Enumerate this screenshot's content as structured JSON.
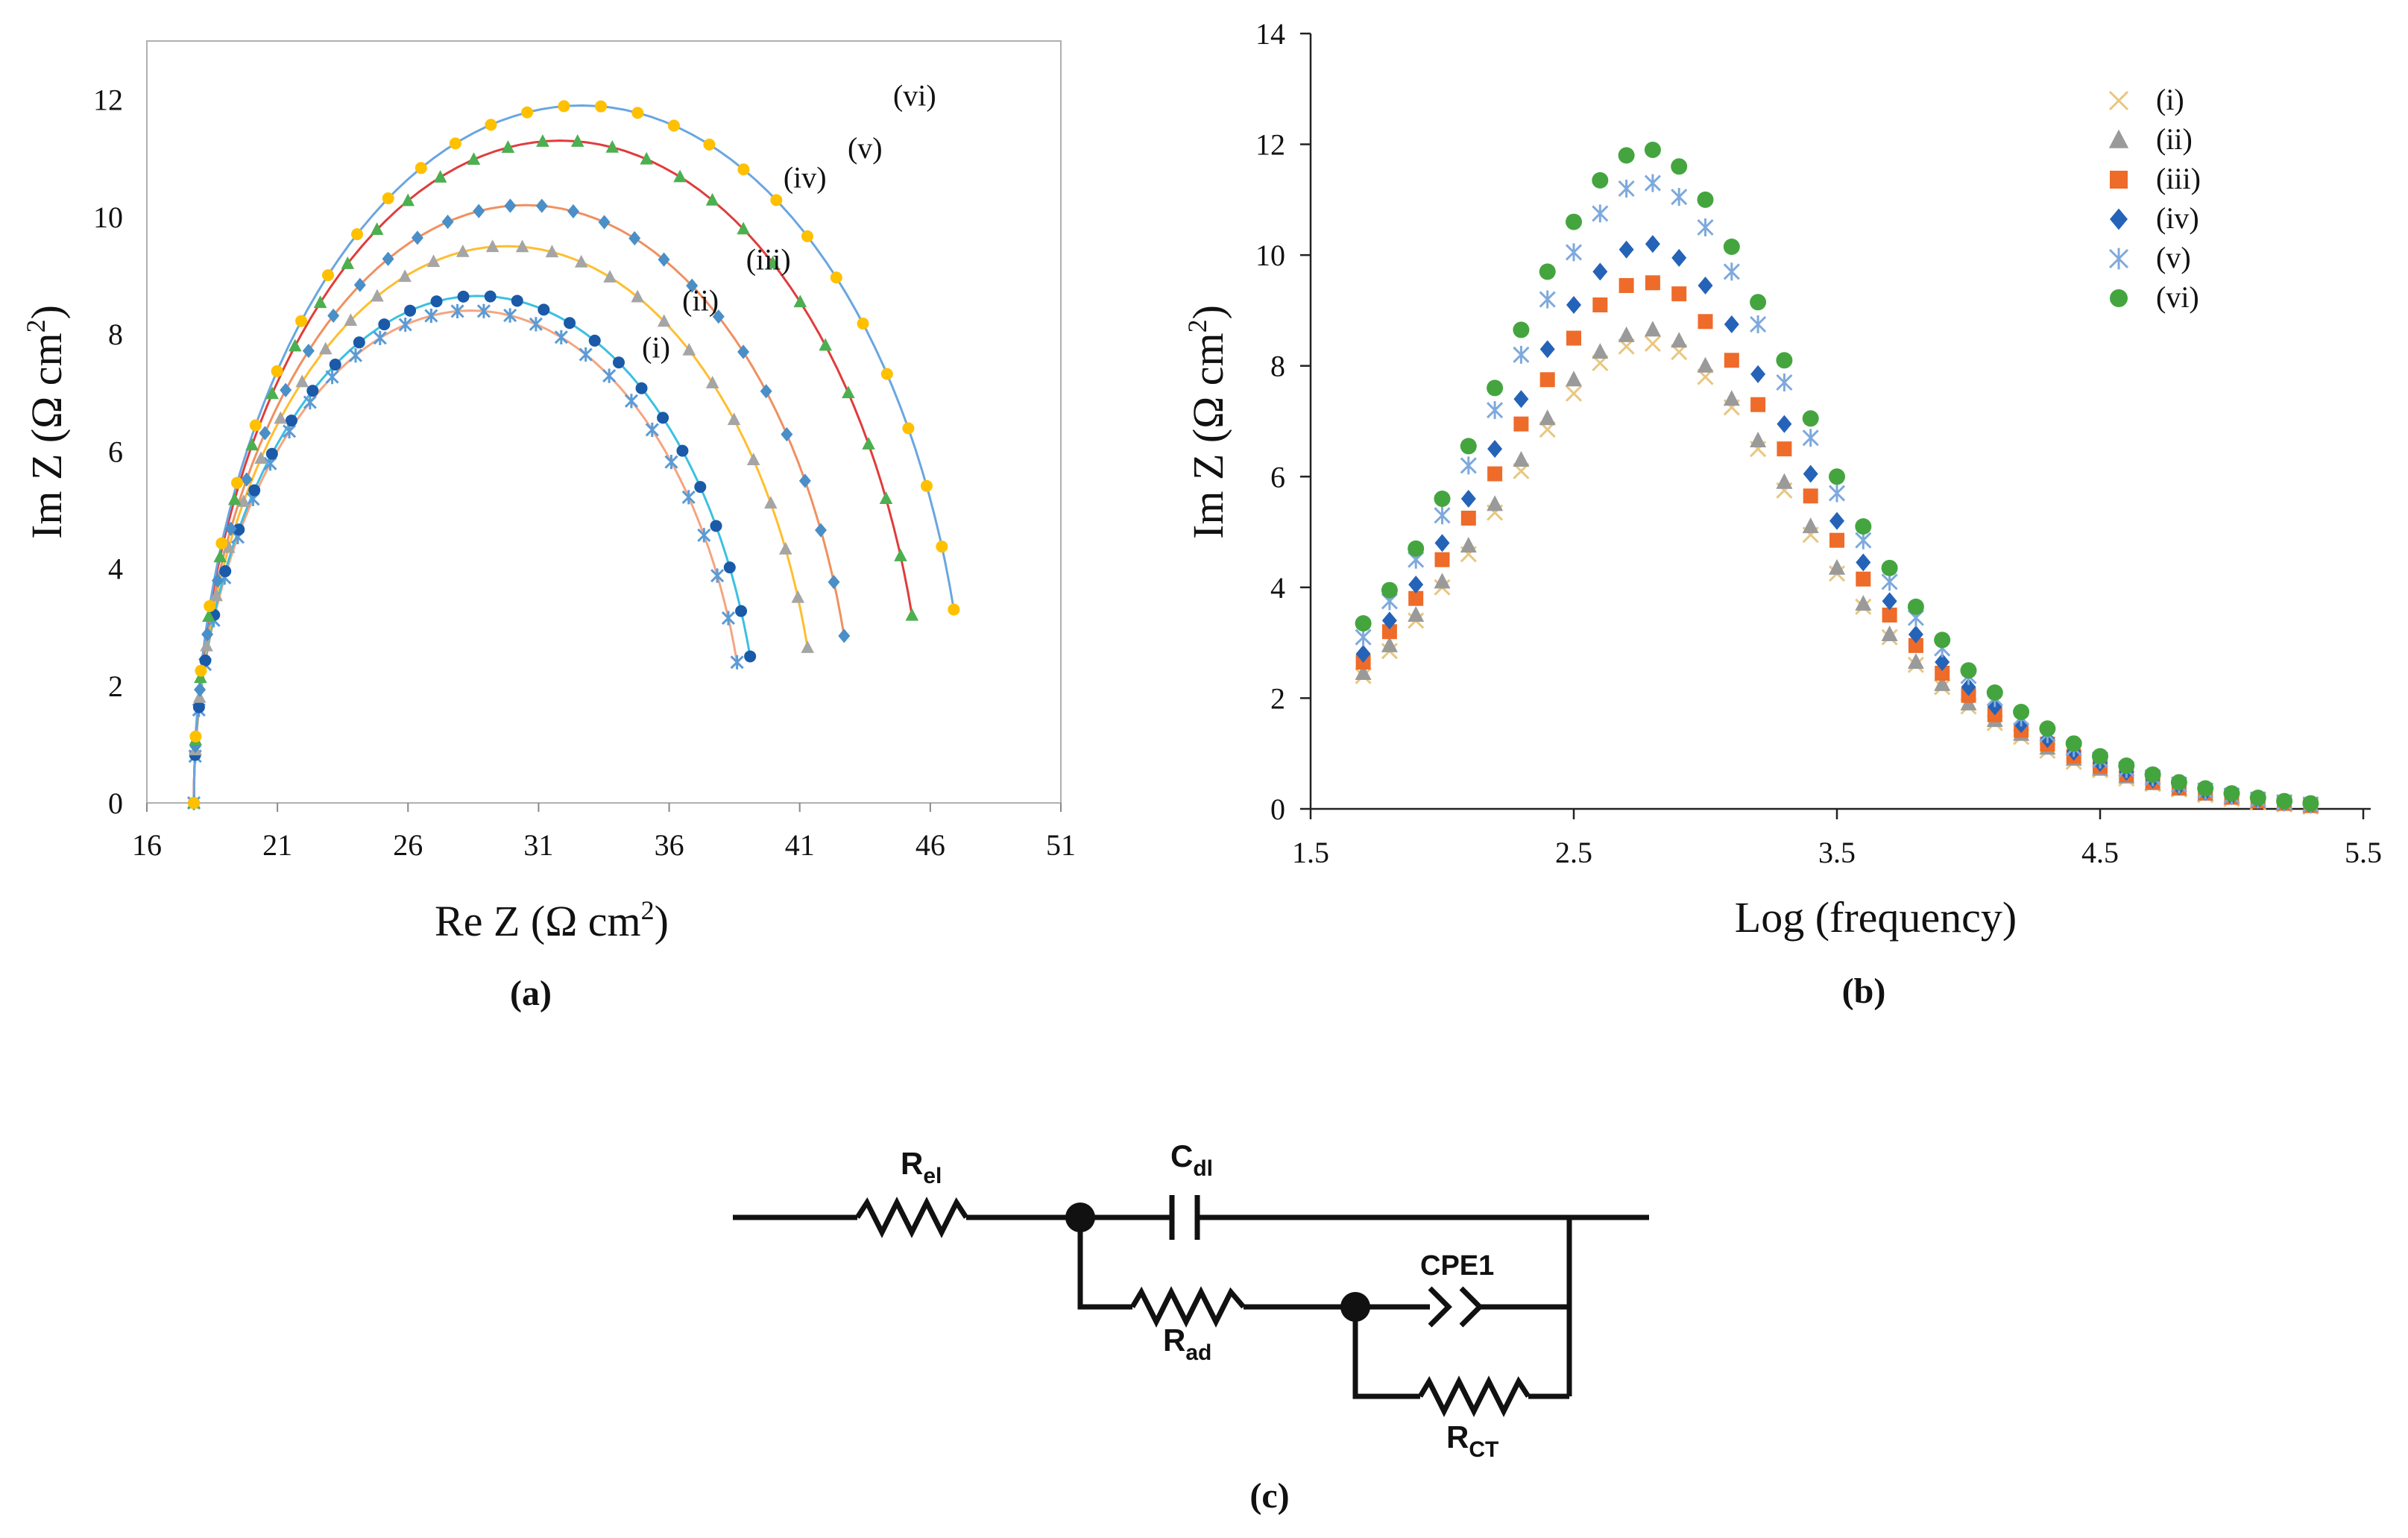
{
  "colors": {
    "i": "#e8c77e",
    "ii": "#9a9a9a",
    "iii": "#ee6b2a",
    "iv": "#2563b8",
    "v": "#7ea9dd",
    "vi": "#44a53f",
    "a_i": "#5b9bd5",
    "a_ii": "#1a5aa8",
    "a_iii": "#a5a5a5",
    "a_iv": "#4a8fc7",
    "a_v": "#4caf50",
    "a_vi": "#ffc000",
    "a_line_i": "#f4a582",
    "a_line_ii": "#3cc0e0",
    "a_line_iii": "#ffbe2e",
    "a_line_iv": "#f09060",
    "a_line_v": "#e03c3c",
    "a_line_vi": "#6aa6e0"
  },
  "chart_data": [
    {
      "panel": "(a)",
      "type": "scatter",
      "xlabel": "Re Z (Ω cm",
      "xlabel_sup": "2",
      "xlabel_close": ")",
      "ylabel": "Im Z (Ω cm",
      "ylabel_sup": "2",
      "ylabel_close": ")",
      "xlim": [
        16,
        51
      ],
      "ylim": [
        0,
        13
      ],
      "xticks": [
        16,
        21,
        26,
        31,
        36,
        41,
        46,
        51
      ],
      "yticks": [
        0,
        2,
        4,
        6,
        8,
        10,
        12
      ],
      "series": [
        {
          "name": "(i)",
          "marker": "star",
          "r0": 17.8,
          "x_end": 38.6,
          "y_end": 2.4,
          "peak": 8.4,
          "label_x": 35.5,
          "label_y": 7.6
        },
        {
          "name": "(ii)",
          "marker": "circle",
          "r0": 17.8,
          "x_end": 39.1,
          "y_end": 2.5,
          "peak": 8.65,
          "label_x": 37.2,
          "label_y": 8.4
        },
        {
          "name": "(iii)",
          "marker": "triangle",
          "r0": 17.8,
          "x_end": 41.3,
          "y_end": 2.65,
          "peak": 9.5,
          "label_x": 39.8,
          "label_y": 9.1
        },
        {
          "name": "(iv)",
          "marker": "diamond",
          "r0": 17.8,
          "x_end": 42.7,
          "y_end": 2.85,
          "peak": 10.2,
          "label_x": 41.2,
          "label_y": 10.5
        },
        {
          "name": "(v)",
          "marker": "triangle",
          "r0": 17.8,
          "x_end": 45.3,
          "y_end": 3.2,
          "peak": 11.3,
          "label_x": 43.5,
          "label_y": 11.0
        },
        {
          "name": "(vi)",
          "marker": "circle",
          "r0": 17.8,
          "x_end": 46.9,
          "y_end": 3.3,
          "peak": 11.9,
          "label_x": 45.4,
          "label_y": 11.9
        }
      ]
    },
    {
      "panel": "(b)",
      "type": "scatter",
      "xlabel": "Log (frequency)",
      "ylabel": "Im Z (Ω cm",
      "ylabel_sup": "2",
      "ylabel_close": ")",
      "xlim": [
        1.5,
        5.5
      ],
      "ylim": [
        0,
        14
      ],
      "xticks": [
        1.5,
        2.5,
        3.5,
        4.5,
        5.5
      ],
      "yticks": [
        0,
        2,
        4,
        6,
        8,
        10,
        12,
        14
      ],
      "x": [
        1.7,
        1.8,
        1.9,
        2.0,
        2.1,
        2.2,
        2.3,
        2.4,
        2.5,
        2.6,
        2.7,
        2.8,
        2.9,
        3.0,
        3.1,
        3.2,
        3.3,
        3.4,
        3.5,
        3.6,
        3.7,
        3.8,
        3.9,
        4.0,
        4.1,
        4.2,
        4.3,
        4.4,
        4.5,
        4.6,
        4.7,
        4.8,
        4.9,
        5.0,
        5.1,
        5.2,
        5.3
      ],
      "series": [
        {
          "name": "(i)",
          "marker": "x",
          "values": [
            2.4,
            2.85,
            3.4,
            4.0,
            4.6,
            5.35,
            6.1,
            6.85,
            7.5,
            8.05,
            8.35,
            8.4,
            8.25,
            7.8,
            7.25,
            6.5,
            5.75,
            4.95,
            4.25,
            3.65,
            3.1,
            2.6,
            2.2,
            1.85,
            1.55,
            1.3,
            1.05,
            0.85,
            0.7,
            0.55,
            0.45,
            0.35,
            0.25,
            0.18,
            0.12,
            0.08,
            0.04
          ]
        },
        {
          "name": "(ii)",
          "marker": "triangle",
          "values": [
            2.45,
            2.95,
            3.5,
            4.1,
            4.75,
            5.5,
            6.3,
            7.05,
            7.75,
            8.25,
            8.55,
            8.65,
            8.45,
            8.0,
            7.4,
            6.65,
            5.9,
            5.1,
            4.35,
            3.7,
            3.15,
            2.65,
            2.25,
            1.9,
            1.6,
            1.35,
            1.1,
            0.9,
            0.72,
            0.58,
            0.46,
            0.36,
            0.27,
            0.2,
            0.13,
            0.09,
            0.05
          ]
        },
        {
          "name": "(iii)",
          "marker": "square",
          "values": [
            2.65,
            3.2,
            3.8,
            4.5,
            5.25,
            6.05,
            6.95,
            7.75,
            8.5,
            9.1,
            9.45,
            9.5,
            9.3,
            8.8,
            8.1,
            7.3,
            6.5,
            5.65,
            4.85,
            4.15,
            3.5,
            2.95,
            2.45,
            2.05,
            1.7,
            1.42,
            1.17,
            0.95,
            0.77,
            0.62,
            0.49,
            0.38,
            0.29,
            0.21,
            0.14,
            0.1,
            0.06
          ]
        },
        {
          "name": "(iv)",
          "marker": "diamond",
          "values": [
            2.8,
            3.4,
            4.05,
            4.8,
            5.6,
            6.5,
            7.4,
            8.3,
            9.1,
            9.7,
            10.1,
            10.2,
            9.95,
            9.45,
            8.75,
            7.85,
            6.95,
            6.05,
            5.2,
            4.45,
            3.75,
            3.15,
            2.65,
            2.2,
            1.85,
            1.53,
            1.26,
            1.03,
            0.83,
            0.67,
            0.53,
            0.41,
            0.31,
            0.23,
            0.16,
            0.11,
            0.07
          ]
        },
        {
          "name": "(v)",
          "marker": "star",
          "values": [
            3.1,
            3.75,
            4.5,
            5.3,
            6.2,
            7.2,
            8.2,
            9.2,
            10.05,
            10.75,
            11.2,
            11.3,
            11.05,
            10.5,
            9.7,
            8.75,
            7.7,
            6.7,
            5.7,
            4.85,
            4.1,
            3.45,
            2.9,
            2.4,
            2.0,
            1.65,
            1.35,
            1.1,
            0.89,
            0.72,
            0.57,
            0.44,
            0.33,
            0.24,
            0.17,
            0.12,
            0.08
          ]
        },
        {
          "name": "(vi)",
          "marker": "circle",
          "values": [
            3.35,
            3.95,
            4.7,
            5.6,
            6.55,
            7.6,
            8.65,
            9.7,
            10.6,
            11.35,
            11.8,
            11.9,
            11.6,
            11.0,
            10.15,
            9.15,
            8.1,
            7.05,
            6.0,
            5.1,
            4.35,
            3.65,
            3.05,
            2.5,
            2.1,
            1.75,
            1.45,
            1.18,
            0.95,
            0.78,
            0.62,
            0.48,
            0.37,
            0.28,
            0.2,
            0.14,
            0.1
          ]
        }
      ],
      "legend": [
        "(i)",
        "(ii)",
        "(iii)",
        "(iv)",
        "(v)",
        "(vi)"
      ],
      "legend_position": "top-right"
    }
  ],
  "circuit": {
    "panel": "(c)",
    "r_el": "R",
    "r_el_sub": "el",
    "c_dl": "C",
    "c_dl_sub": "dl",
    "r_ad": "R",
    "r_ad_sub": "ad",
    "cpe": "CPE1",
    "r_ct": "R",
    "r_ct_sub": "CT"
  }
}
